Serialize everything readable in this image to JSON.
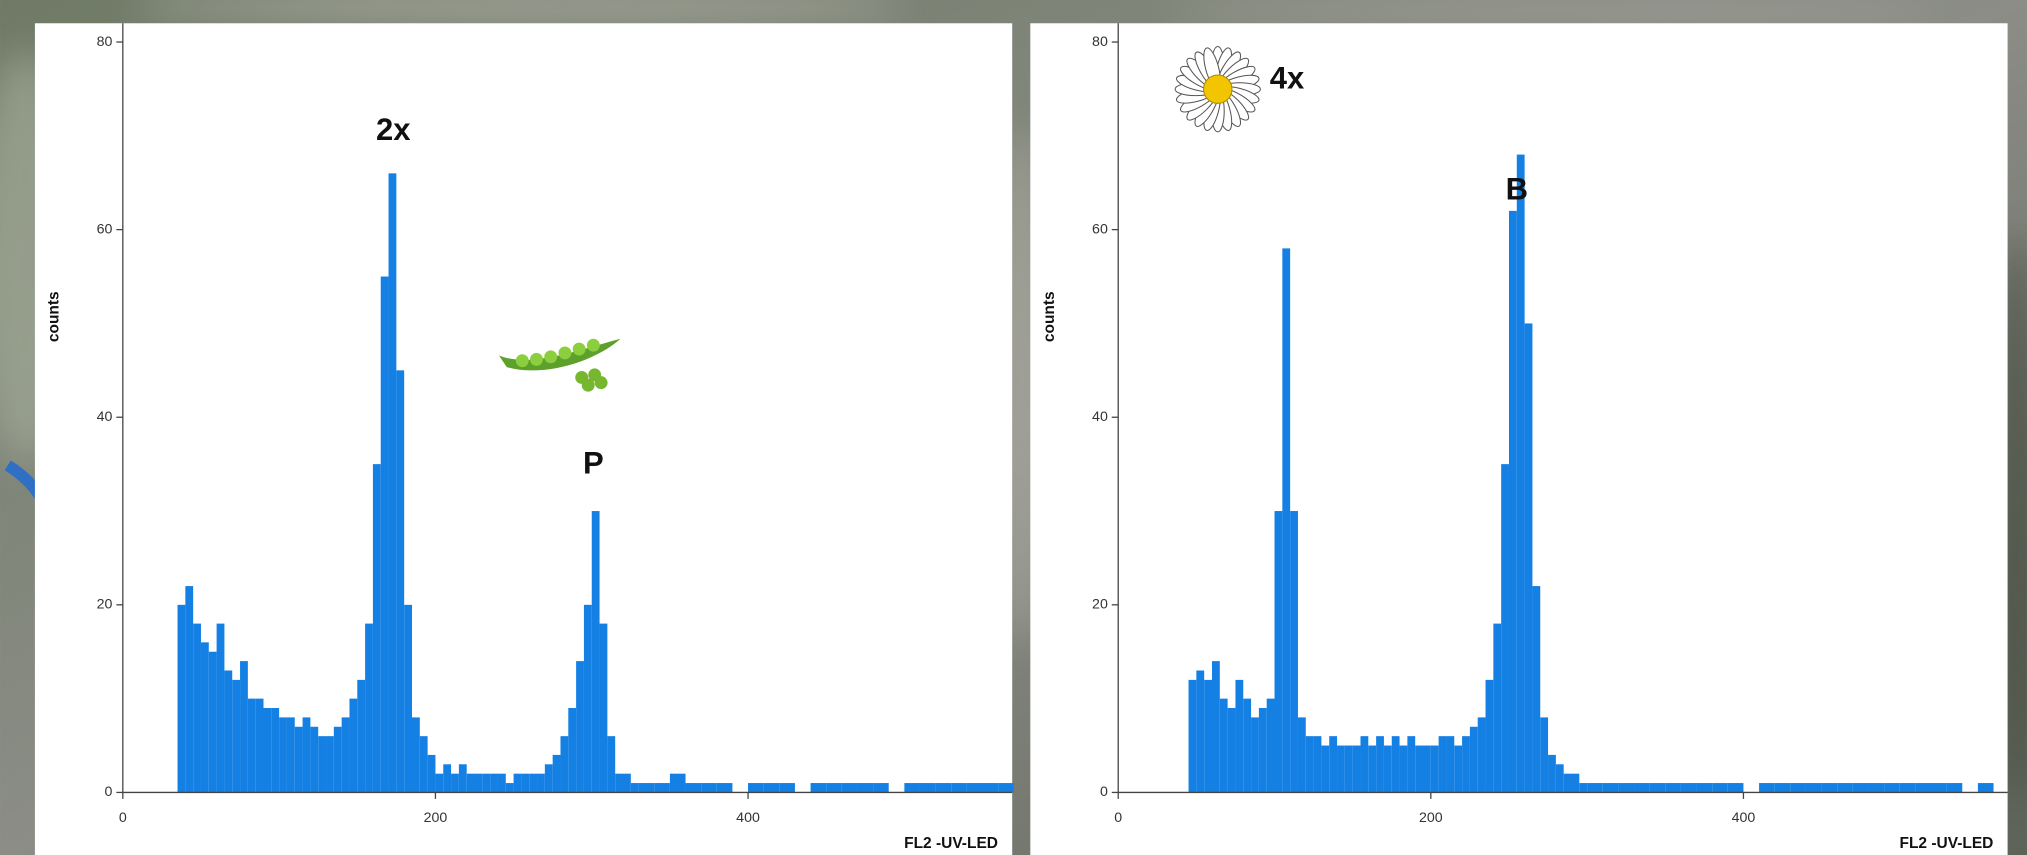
{
  "chart_data": [
    {
      "type": "histogram",
      "ylabel": "counts",
      "xlabel": "FL2  -UV-LED",
      "color": "#1580e3",
      "xlim": [
        0,
        569
      ],
      "ylim": [
        0,
        82
      ],
      "xticks": [
        0,
        200,
        400
      ],
      "yticks": [
        0,
        20,
        40,
        60,
        80
      ],
      "annotations": [
        "2x",
        "P"
      ],
      "bins": [
        35,
        40,
        45,
        50,
        55,
        60,
        65,
        70,
        75,
        80,
        85,
        90,
        95,
        100,
        105,
        110,
        115,
        120,
        125,
        130,
        135,
        140,
        145,
        150,
        155,
        160,
        165,
        170,
        175,
        180,
        185,
        190,
        195,
        200,
        205,
        210,
        215,
        220,
        225,
        230,
        235,
        240,
        245,
        250,
        255,
        260,
        265,
        270,
        275,
        280,
        285,
        290,
        295,
        300,
        305,
        310,
        315,
        320,
        325,
        330,
        340,
        350,
        360,
        370,
        380,
        390,
        400,
        410,
        420,
        430,
        440,
        450,
        460,
        470,
        480,
        490,
        500,
        510,
        520,
        530,
        540,
        550,
        560,
        570
      ],
      "counts": [
        20,
        22,
        18,
        16,
        15,
        18,
        13,
        12,
        14,
        10,
        10,
        9,
        9,
        8,
        8,
        7,
        8,
        7,
        6,
        6,
        7,
        8,
        10,
        12,
        18,
        35,
        55,
        66,
        45,
        20,
        8,
        6,
        4,
        2,
        3,
        2,
        3,
        2,
        2,
        2,
        2,
        2,
        1,
        2,
        2,
        2,
        2,
        3,
        4,
        6,
        9,
        14,
        20,
        30,
        18,
        6,
        2,
        2,
        1,
        1,
        1,
        2,
        1,
        1,
        1,
        0,
        1,
        1,
        1,
        0,
        1,
        1,
        1,
        1,
        1,
        0,
        1,
        1,
        1,
        1,
        1,
        1,
        1
      ]
    },
    {
      "type": "histogram",
      "ylabel": "counts",
      "xlabel": "FL2  -UV-LED",
      "color": "#1580e3",
      "xlim": [
        0,
        569
      ],
      "ylim": [
        0,
        82
      ],
      "xticks": [
        0,
        200,
        400
      ],
      "yticks": [
        0,
        20,
        40,
        60,
        80
      ],
      "annotations": [
        "4x",
        "B"
      ],
      "bins": [
        45,
        50,
        55,
        60,
        65,
        70,
        75,
        80,
        85,
        90,
        95,
        100,
        105,
        110,
        115,
        120,
        125,
        130,
        135,
        140,
        145,
        150,
        155,
        160,
        165,
        170,
        175,
        180,
        185,
        190,
        195,
        200,
        205,
        210,
        215,
        220,
        225,
        230,
        235,
        240,
        245,
        250,
        255,
        260,
        265,
        270,
        275,
        280,
        285,
        290,
        295,
        300,
        310,
        320,
        330,
        340,
        350,
        360,
        370,
        380,
        390,
        400,
        410,
        420,
        430,
        440,
        450,
        460,
        470,
        480,
        490,
        500,
        510,
        520,
        530,
        540,
        550,
        560
      ],
      "counts": [
        12,
        13,
        12,
        14,
        10,
        9,
        12,
        10,
        8,
        9,
        10,
        30,
        58,
        30,
        8,
        6,
        6,
        5,
        6,
        5,
        5,
        5,
        6,
        5,
        6,
        5,
        6,
        5,
        6,
        5,
        5,
        5,
        6,
        6,
        5,
        6,
        7,
        8,
        12,
        18,
        35,
        62,
        68,
        50,
        22,
        8,
        4,
        3,
        2,
        2,
        1,
        1,
        1,
        1,
        1,
        1,
        1,
        1,
        1,
        1,
        1,
        0,
        1,
        1,
        1,
        1,
        1,
        1,
        1,
        1,
        1,
        1,
        1,
        1,
        1,
        0,
        1
      ]
    }
  ]
}
